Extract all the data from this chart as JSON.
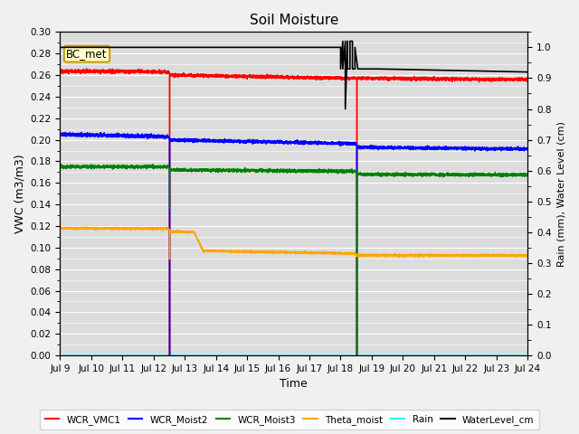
{
  "title": "Soil Moisture",
  "xlabel": "Time",
  "ylabel_left": "VWC (m3/m3)",
  "ylabel_right": "Rain (mm), Water Level (cm)",
  "ylim_left": [
    0.0,
    0.3
  ],
  "ylim_right": [
    0.0,
    1.05
  ],
  "station_label": "BC_met",
  "xstart": 9,
  "xend": 24,
  "lines": {
    "WCR_VMC1": {
      "color": "red",
      "lw": 1.0
    },
    "WCR_Moist2": {
      "color": "blue",
      "lw": 1.0
    },
    "WCR_Moist3": {
      "color": "green",
      "lw": 1.0
    },
    "Theta_moist": {
      "color": "orange",
      "lw": 1.0
    },
    "Rain": {
      "color": "cyan",
      "lw": 1.0
    },
    "WaterLevel_cm": {
      "color": "black",
      "lw": 1.2
    }
  }
}
